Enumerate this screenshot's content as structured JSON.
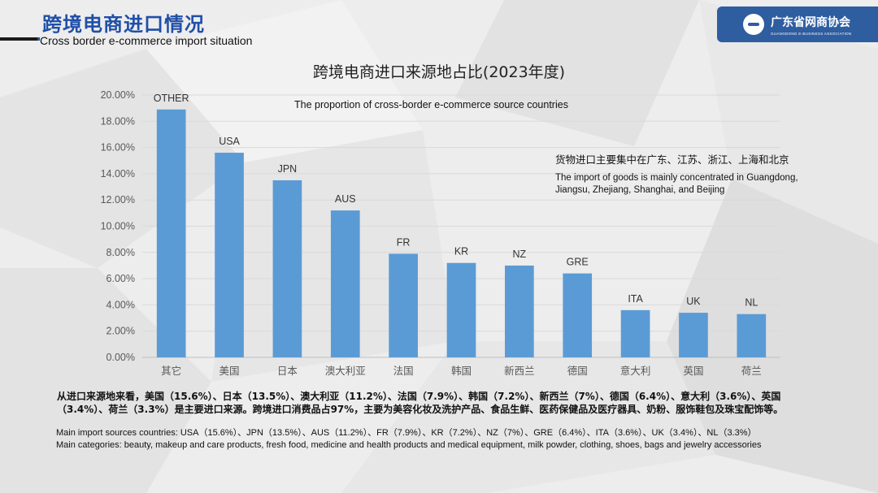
{
  "header": {
    "title": "跨境电商进口情况",
    "subtitle": "Cross border e-commerce import situation"
  },
  "logo": {
    "name_cn": "广东省网商协会",
    "name_en": "GUANGDONG E-BUSINESS ASSOCIATION"
  },
  "colors": {
    "brand_blue": "#2e5da0",
    "bar": "#5b9bd5",
    "title_blue": "#1f4fa8"
  },
  "chart_data": {
    "type": "bar",
    "title": "跨境电商进口来源地占比(2023年度)",
    "subtitle": "The proportion of cross-border e-commerce source countries",
    "categories": [
      "其它",
      "美国",
      "日本",
      "澳大利亚",
      "法国",
      "韩国",
      "新西兰",
      "德国",
      "意大利",
      "英国",
      "荷兰"
    ],
    "bar_labels": [
      "OTHER",
      "USA",
      "JPN",
      "AUS",
      "FR",
      "KR",
      "NZ",
      "GRE",
      "ITA",
      "UK",
      "NL"
    ],
    "values": [
      18.9,
      15.6,
      13.5,
      11.2,
      7.9,
      7.2,
      7.0,
      6.4,
      3.6,
      3.4,
      3.3
    ],
    "ylim": [
      0,
      20
    ],
    "yticks": [
      "0.00%",
      "2.00%",
      "4.00%",
      "6.00%",
      "8.00%",
      "10.00%",
      "12.00%",
      "14.00%",
      "16.00%",
      "18.00%",
      "20.00%"
    ],
    "grid": true,
    "legend": "none"
  },
  "notes": {
    "cn": "货物进口主要集中在广东、江苏、浙江、上海和北京",
    "en_line1": "The import of goods is mainly concentrated in Guangdong,",
    "en_line2": "Jiangsu, Zhejiang, Shanghai, and Beijing"
  },
  "summary": {
    "cn": "从进口来源地来看，美国（15.6%）、日本（13.5%）、澳大利亚（11.2%）、法国（7.9%）、韩国（7.2%）、新西兰（7%）、德国（6.4%）、意大利（3.6%）、英国（3.4%）、荷兰（3.3%）是主要进口来源。跨境进口消费品占97%，主要为美容化妆及洗护产品、食品生鲜、医药保健品及医疗器具、奶粉、服饰鞋包及珠宝配饰等。",
    "en_line1": "Main import sources countries: USA（15.6%）、JPN（13.5%）、AUS（11.2%）、FR（7.9%）、KR（7.2%）、NZ（7%）、GRE（6.4%）、ITA（3.6%）、UK（3.4%）、NL（3.3%）",
    "en_line2": "Main categories: beauty, makeup and care products, fresh food, medicine and health products and medical equipment, milk powder, clothing, shoes, bags and jewelry accessories"
  }
}
